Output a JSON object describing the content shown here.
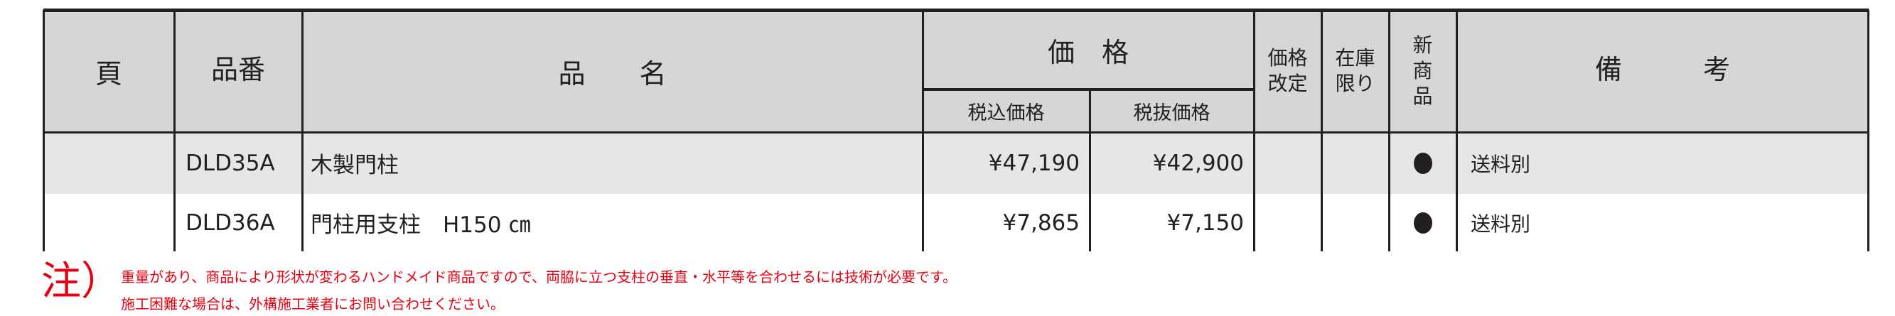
{
  "header": {
    "page": "頁",
    "product_code": "品番",
    "product_name": "品　　名",
    "price": "価　格",
    "price_incl_tax": "税込価格",
    "price_excl_tax": "税抜価格",
    "price_revised": [
      "価格",
      "改定"
    ],
    "stock_limited": [
      "在庫",
      "限り"
    ],
    "new_product": [
      "新",
      "商",
      "品"
    ],
    "remarks": "備　　　考"
  },
  "rows": [
    {
      "page": "",
      "code": "DLD35A",
      "name": "木製門柱",
      "price_incl": "¥47,190",
      "price_excl": "¥42,900",
      "price_revised": "",
      "stock_limited": "",
      "new_product": true,
      "remarks": "送料別"
    },
    {
      "page": "",
      "code": "DLD36A",
      "name": "門柱用支柱　H150 ㎝",
      "price_incl": "¥7,865",
      "price_excl": "¥7,150",
      "price_revised": "",
      "stock_limited": "",
      "new_product": true,
      "remarks": "送料別"
    }
  ],
  "note": {
    "mark": "注）",
    "lines": [
      "重量があり、商品により形状が変わるハンドメイド商品ですので、両脇に立つ支柱の垂直・水平等を合わせるには技術が必要です。",
      "施工困難な場合は、外構施工業者にお問い合わせください。"
    ]
  },
  "colors": {
    "header_bg": "#d5d6d8",
    "row_alt_bg": "#e5e6e6",
    "note": "#e60012",
    "border": "#231f20"
  }
}
